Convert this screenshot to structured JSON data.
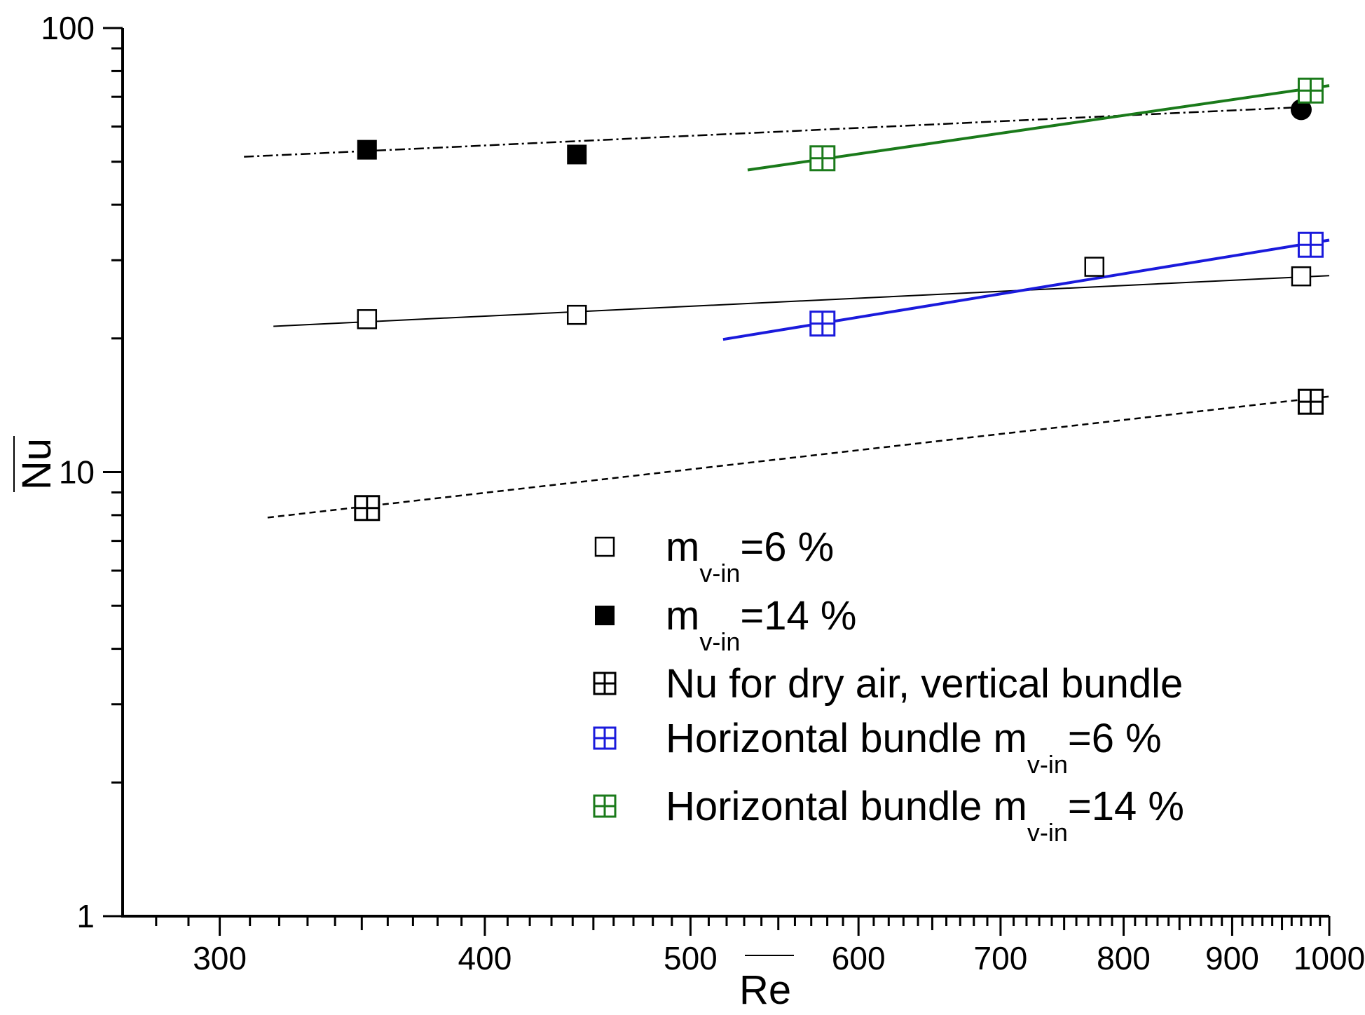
{
  "chart_data": {
    "type": "scatter",
    "xlabel": "Re",
    "ylabel": "Nu",
    "xscale": "log",
    "yscale": "log",
    "xlim": [
      270,
      1000
    ],
    "ylim": [
      1,
      100
    ],
    "x_ticks": [
      "300",
      "400",
      "500",
      "600",
      "700",
      "800",
      "900",
      "1000"
    ],
    "y_ticks": [
      "1",
      "10",
      "100"
    ],
    "legend_position": "center-right",
    "series": [
      {
        "legend_main": "m",
        "legend_sub": "v-in",
        "legend_tail": "=6 %",
        "marker": "open-square",
        "color": "#000000",
        "x": [
          352,
          442,
          775,
          970
        ],
        "y": [
          22.1,
          22.6,
          29.0,
          27.6
        ],
        "fit": {
          "x": [
            318,
            1000
          ],
          "y": [
            21.3,
            27.7
          ],
          "style": "solid-thin",
          "color": "#000000"
        }
      },
      {
        "legend_main": "m",
        "legend_sub": "v-in",
        "legend_tail": "=14 %",
        "marker": "filled-square",
        "color": "#000000",
        "x": [
          352,
          442
        ],
        "y": [
          53.2,
          51.9
        ],
        "fit": {
          "x": [
            308,
            980
          ],
          "y": [
            51.3,
            66.5
          ],
          "style": "dash-dot",
          "color": "#000000"
        }
      },
      {
        "legend_main": "",
        "legend_sub": "",
        "legend_tail": "",
        "marker": "filled-circle",
        "color": "#000000",
        "x": [
          970
        ],
        "y": [
          65.5
        ]
      },
      {
        "legend_main": "Nu for dry air, vertical bundle",
        "legend_sub": "",
        "legend_tail": "",
        "marker": "crossed-square",
        "color": "#000000",
        "x": [
          352,
          980
        ],
        "y": [
          8.3,
          14.4
        ],
        "fit": {
          "x": [
            316,
            1000
          ],
          "y": [
            7.9,
            14.8
          ],
          "style": "dashed",
          "color": "#000000"
        }
      },
      {
        "legend_main": "Horizontal bundle m",
        "legend_sub": "v-in",
        "legend_tail": "=6 %",
        "marker": "crossed-square",
        "color": "#1a1adc",
        "x": [
          577,
          980
        ],
        "y": [
          21.6,
          32.5
        ],
        "fit": {
          "x": [
            518,
            1000
          ],
          "y": [
            19.9,
            33.3
          ],
          "style": "solid-thick",
          "color": "#1a1adc"
        }
      },
      {
        "legend_main": "Horizontal bundle m",
        "legend_sub": "v-in",
        "legend_tail": "=14 %",
        "marker": "crossed-square",
        "color": "#1a7a1a",
        "x": [
          577,
          980
        ],
        "y": [
          50.9,
          72.3
        ],
        "fit": {
          "x": [
            532,
            1000
          ],
          "y": [
            47.9,
            74.2
          ],
          "style": "solid-thick",
          "color": "#1a7a1a"
        }
      }
    ]
  }
}
